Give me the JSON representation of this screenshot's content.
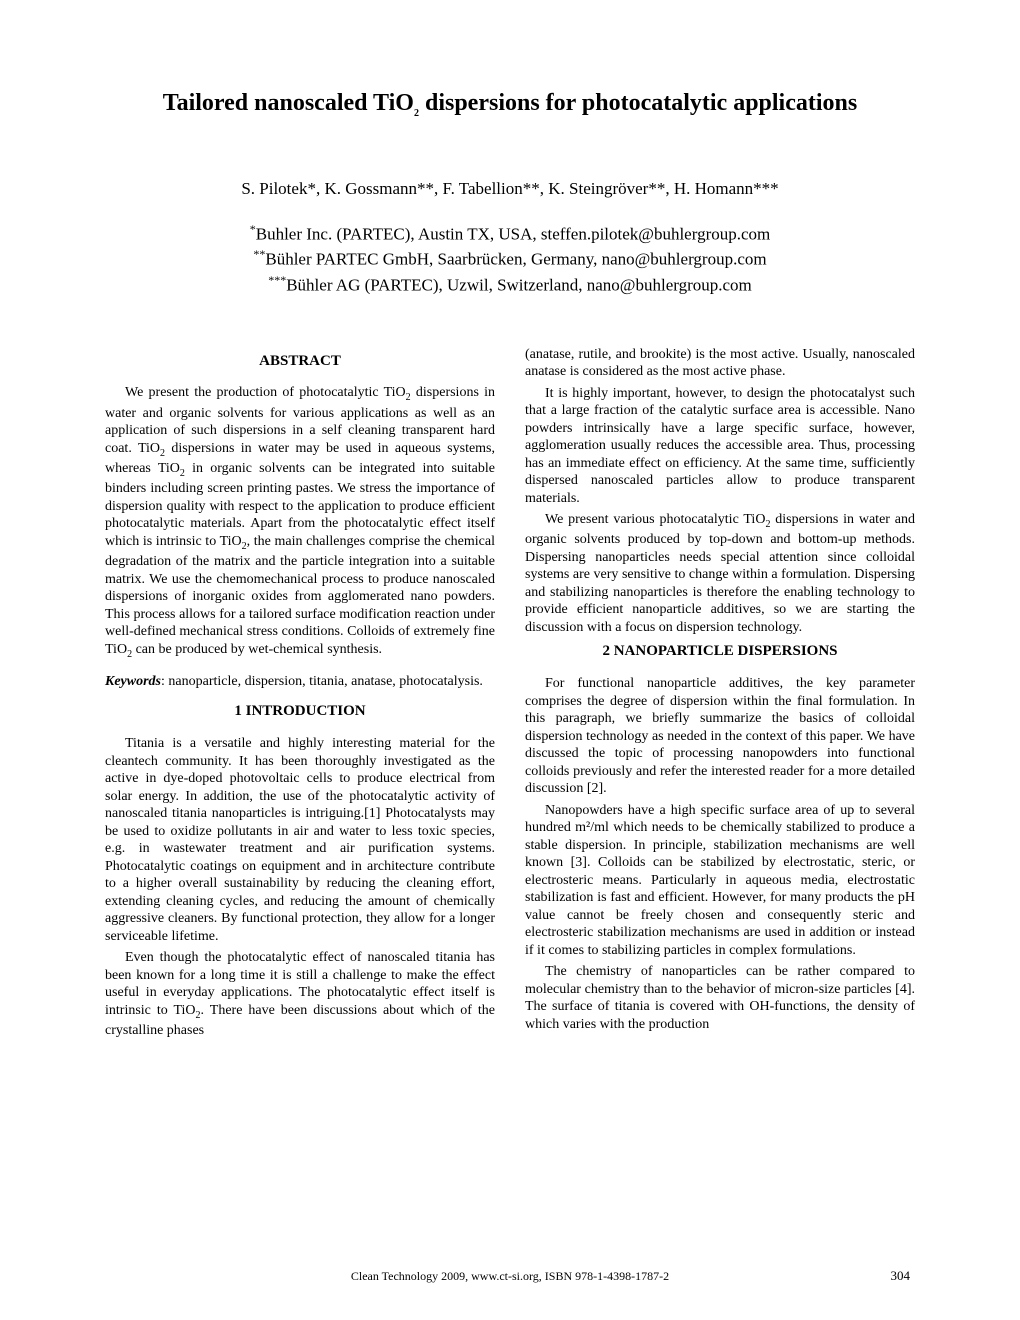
{
  "title_pre": "Tailored nanoscaled TiO",
  "title_sub": "2",
  "title_post": " dispersions for photocatalytic applications",
  "authors": "S. Pilotek*, K. Gossmann**, F. Tabellion**, K. Steingröver**, H. Homann***",
  "aff1_sup": "*",
  "aff1": "Buhler Inc. (PARTEC), Austin TX, USA, steffen.pilotek@buhlergroup.com",
  "aff2_sup": "**",
  "aff2": "Bühler PARTEC GmbH, Saarbrücken, Germany, nano@buhlergroup.com",
  "aff3_sup": "***",
  "aff3": "Bühler AG (PARTEC), Uzwil, Switzerland, nano@buhlergroup.com",
  "abstract_head": "ABSTRACT",
  "abs_p1a": "We present the production of photocatalytic TiO",
  "abs_p1b": " dispersions in water and organic solvents for various applications as well as an application of such dispersions in a self cleaning transparent hard coat. TiO",
  "abs_p1c": " dispersions in water may be used in aqueous systems, whereas TiO",
  "abs_p1d": " in organic solvents can be integrated into suitable binders including screen printing pastes. We stress the importance of dispersion quality with respect to the application to produce efficient photocatalytic materials. Apart from the photocatalytic effect itself which is intrinsic to TiO",
  "abs_p1e": ", the main challenges comprise the chemical degradation of the matrix and the particle integration into a suitable matrix. We use the chemomechanical process to produce nanoscaled dispersions of inorganic oxides from agglomerated nano powders. This process allows for a tailored surface modification reaction under well-defined mechanical stress conditions. Colloids of extremely fine TiO",
  "abs_p1f": " can be produced by wet-chemical synthesis.",
  "keywords_label": "Keywords",
  "keywords_text": ": nanoparticle, dispersion, titania, anatase, photocatalysis.",
  "intro_head": "1    INTRODUCTION",
  "intro_p1": "Titania is a versatile and highly interesting material for the cleantech community. It has been thoroughly investigated as the active in dye-doped photovoltaic cells to produce electrical from solar energy. In addition, the use of the photocatalytic activity of nanoscaled titania nanoparticles is intriguing.[1] Photocatalysts may be used to oxidize pollutants in air and water to less toxic species, e.g. in wastewater treatment and air purification systems. Photocatalytic coatings on equipment and in architecture contribute to a higher overall sustainability by reducing the cleaning effort, extending cleaning cycles, and reducing the amount of chemically aggressive cleaners. By functional protection, they allow for a longer serviceable lifetime.",
  "intro_p2a": "Even though the photocatalytic effect of nanoscaled titania has been known for a long time it is still a challenge to make the effect useful in everyday applications. The photocatalytic effect itself is intrinsic to TiO",
  "intro_p2b": ". There have been discussions about which of the crystalline phases ",
  "col2_p1": "(anatase, rutile, and brookite) is the most active. Usually, nanoscaled anatase is considered as the most active phase.",
  "col2_p2": "It is highly important, however, to design the photocatalyst such that a large fraction of the catalytic surface area is accessible. Nano powders intrinsically have a large specific surface, however, agglomeration usually reduces the accessible area. Thus, processing has an immediate effect on efficiency. At the same time, sufficiently dispersed nanoscaled particles allow to produce transparent materials.",
  "col2_p3a": "We present various photocatalytic TiO",
  "col2_p3b": " dispersions in water and organic solvents produced by top-down and bottom-up methods. Dispersing nanoparticles needs special attention since colloidal systems are very sensitive to change within a formulation. Dispersing and stabilizing nanoparticles is therefore the enabling technology to provide efficient nanoparticle additives, so we are starting the discussion with a focus on dispersion technology.",
  "sec2_head": "2    NANOPARTICLE DISPERSIONS",
  "sec2_p1": "For functional nanoparticle additives, the key parameter comprises the degree of dispersion within the final formulation. In this paragraph, we briefly summarize the basics of colloidal dispersion technology as needed in the context of this paper. We have discussed the topic of processing nanopowders into functional colloids previously and refer the interested reader for a more detailed discussion [2].",
  "sec2_p2": "Nanopowders have a high specific surface area of up to several hundred m²/ml which needs to be chemically stabilized to produce a stable dispersion. In principle, stabilization mechanisms are well known [3]. Colloids can be stabilized by electrostatic, steric, or electrosteric means. Particularly in aqueous media, electrostatic stabilization is fast and efficient. However, for many products the pH value cannot be freely chosen and consequently steric and electrosteric stabilization mechanisms are used in addition or instead if it comes to stabilizing particles in complex formulations.",
  "sec2_p3": "The chemistry of nanoparticles can be rather compared to molecular chemistry than to the behavior of micron-size particles [4]. The surface of titania is covered with OH-functions, the density of which varies with the production",
  "footer": "Clean Technology 2009, www.ct-si.org, ISBN 978-1-4398-1787-2",
  "pagenum": "304",
  "sub2": "2"
}
